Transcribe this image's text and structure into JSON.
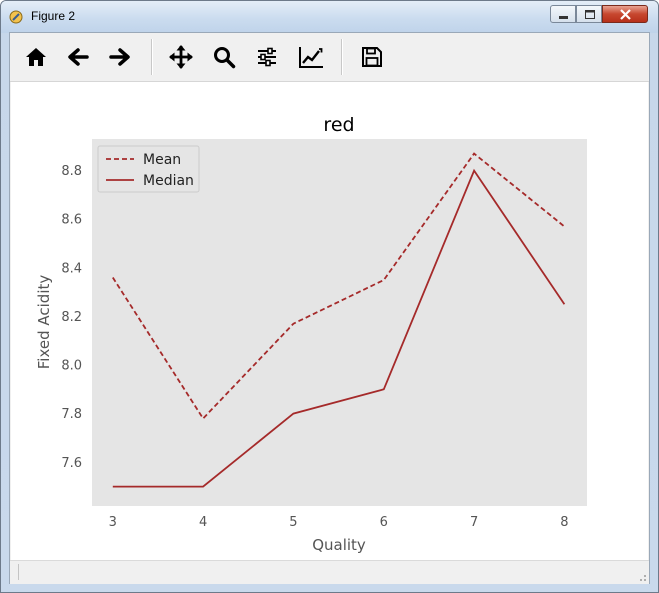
{
  "window": {
    "title": "Figure 2"
  },
  "toolbar": {
    "tools": [
      {
        "name": "home-icon",
        "tooltip": "Home"
      },
      {
        "name": "back-arrow-icon",
        "tooltip": "Back"
      },
      {
        "name": "forward-arrow-icon",
        "tooltip": "Forward"
      },
      {
        "name": "pan-icon",
        "tooltip": "Pan"
      },
      {
        "name": "zoom-icon",
        "tooltip": "Zoom"
      },
      {
        "name": "subplots-icon",
        "tooltip": "Subplots"
      },
      {
        "name": "edit-axis-icon",
        "tooltip": "Customize"
      },
      {
        "name": "save-icon",
        "tooltip": "Save"
      }
    ]
  },
  "colors": {
    "series": "#a52a2a",
    "plot_bg": "#e5e5e5",
    "tick_text": "#555555"
  },
  "chart_data": {
    "type": "line",
    "title": "red",
    "xlabel": "Quality",
    "ylabel": "Fixed Acidity",
    "x": [
      3,
      4,
      5,
      6,
      7,
      8
    ],
    "xticks": [
      "3",
      "4",
      "5",
      "6",
      "7",
      "8"
    ],
    "yticks": [
      "7.6",
      "7.8",
      "8.0",
      "8.2",
      "8.4",
      "8.6",
      "8.8"
    ],
    "ytick_values": [
      7.6,
      7.8,
      8.0,
      8.2,
      8.4,
      8.6,
      8.8
    ],
    "xlim": [
      2.77,
      8.25
    ],
    "ylim": [
      7.42,
      8.93
    ],
    "grid": false,
    "legend_position": "top-left",
    "series": [
      {
        "name": "Mean",
        "style": "dashed",
        "values": [
          8.36,
          7.78,
          8.17,
          8.35,
          8.87,
          8.57
        ]
      },
      {
        "name": "Median",
        "style": "solid",
        "values": [
          7.5,
          7.5,
          7.8,
          7.9,
          8.8,
          8.25
        ]
      }
    ]
  }
}
